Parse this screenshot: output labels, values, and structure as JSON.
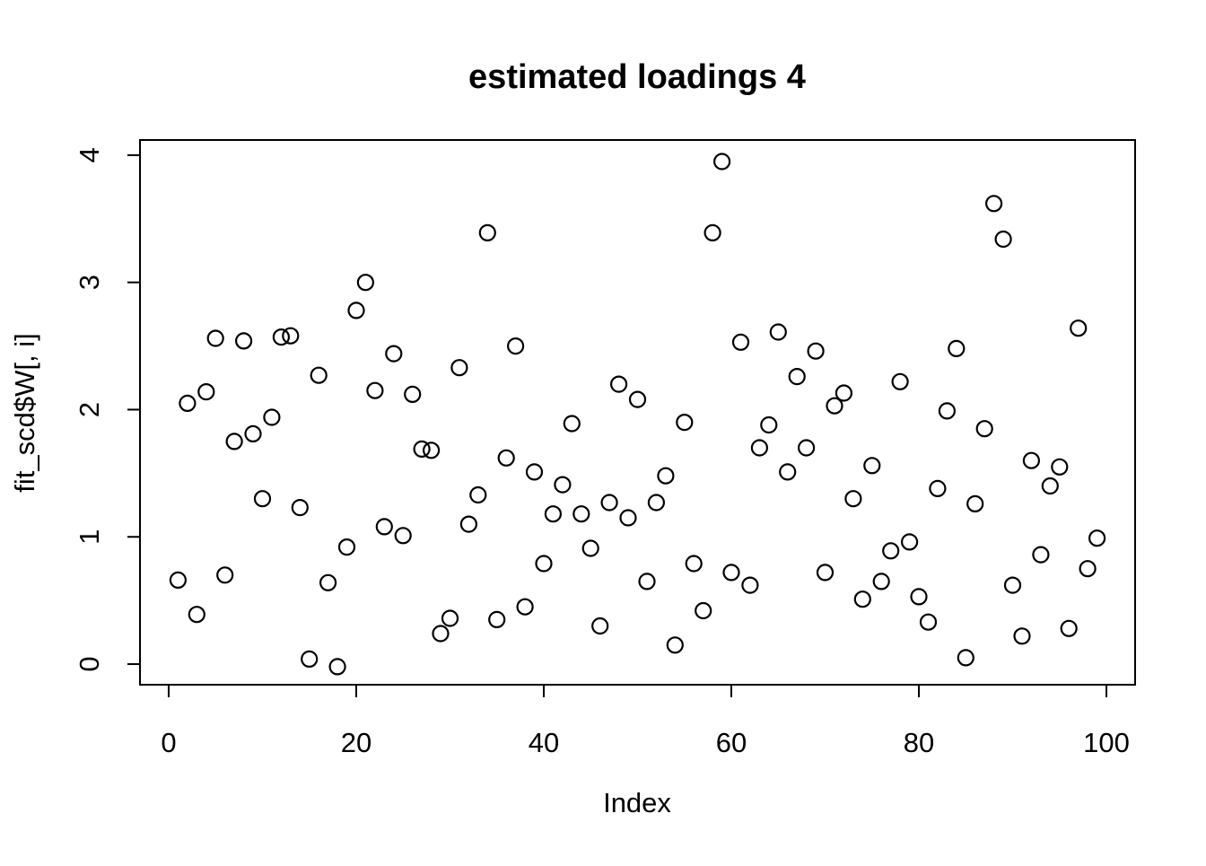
{
  "title": "estimated loadings 4",
  "x_axis": {
    "label": "Index",
    "ticks": [
      0,
      20,
      40,
      60,
      80,
      100
    ]
  },
  "y_axis": {
    "label": "fit_scd$W[, i]",
    "ticks": [
      0,
      1,
      2,
      3,
      4
    ]
  },
  "style": {
    "background": "#ffffff",
    "foreground": "#000000",
    "marker": "open-circle",
    "marker_radius": 8.5,
    "marker_stroke_width": 2.2,
    "box_stroke_width": 2
  },
  "chart_data": {
    "type": "scatter",
    "title": "estimated loadings 4",
    "xlabel": "Index",
    "ylabel": "fit_scd$W[, i]",
    "xlim": [
      -3.06,
      103.06
    ],
    "ylim": [
      -0.162,
      4.119
    ],
    "grid": false,
    "legend": false,
    "x": [
      1,
      2,
      3,
      4,
      5,
      6,
      7,
      8,
      9,
      10,
      11,
      12,
      13,
      14,
      15,
      16,
      17,
      18,
      19,
      20,
      21,
      22,
      23,
      24,
      25,
      26,
      27,
      28,
      29,
      30,
      31,
      32,
      33,
      34,
      35,
      36,
      37,
      38,
      39,
      40,
      41,
      42,
      43,
      44,
      45,
      46,
      47,
      48,
      49,
      50,
      51,
      52,
      53,
      54,
      55,
      56,
      57,
      58,
      59,
      60,
      61,
      62,
      63,
      64,
      65,
      66,
      67,
      68,
      69,
      70,
      71,
      72,
      73,
      74,
      75,
      76,
      77,
      78,
      79,
      80,
      81,
      82,
      83,
      84,
      85,
      86,
      87,
      88,
      89,
      90,
      91,
      92,
      93,
      94,
      95,
      96,
      97,
      98,
      99
    ],
    "y": [
      0.66,
      2.05,
      0.39,
      2.14,
      2.56,
      0.7,
      1.75,
      2.54,
      1.81,
      1.3,
      1.94,
      2.57,
      2.58,
      1.23,
      0.04,
      2.27,
      0.64,
      -0.02,
      0.92,
      2.78,
      3.0,
      2.15,
      1.08,
      2.44,
      1.01,
      2.12,
      1.69,
      1.68,
      0.24,
      0.36,
      2.33,
      1.1,
      1.33,
      3.39,
      0.35,
      1.62,
      2.5,
      0.45,
      1.51,
      0.79,
      1.18,
      1.41,
      1.89,
      1.18,
      0.91,
      0.3,
      1.27,
      2.2,
      1.15,
      2.08,
      0.65,
      1.27,
      1.48,
      0.15,
      1.9,
      0.79,
      0.42,
      3.39,
      3.95,
      0.72,
      2.53,
      0.62,
      1.7,
      1.88,
      2.61,
      1.51,
      2.26,
      1.7,
      2.46,
      0.72,
      2.03,
      2.13,
      1.3,
      0.51,
      1.56,
      0.65,
      0.89,
      2.22,
      0.96,
      0.53,
      0.33,
      1.38,
      1.99,
      2.48,
      0.05,
      1.26,
      1.85,
      3.62,
      3.34,
      0.62,
      0.22,
      1.6,
      0.86,
      1.4,
      1.55,
      0.28,
      2.64,
      0.75,
      0.99
    ]
  }
}
